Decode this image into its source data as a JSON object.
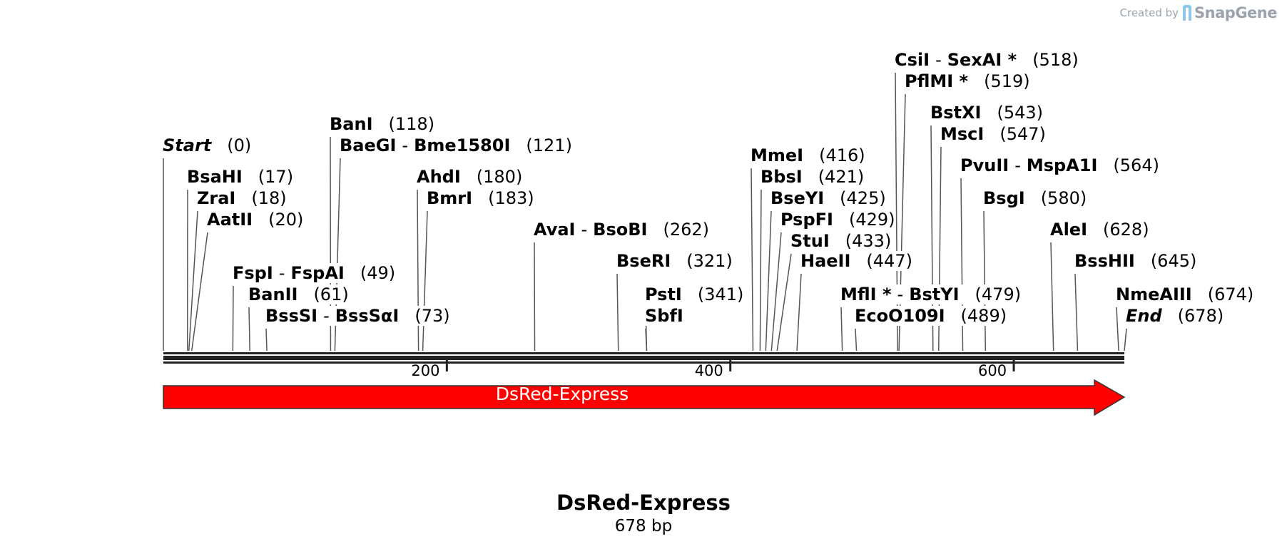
{
  "credit": {
    "created_by": "Created by",
    "brand": "SnapGene"
  },
  "sequence": {
    "name": "DsRed-Express",
    "length_text": "678 bp",
    "length_bp": 678
  },
  "ruler": {
    "ticks": [
      {
        "value": 200,
        "label": "200"
      },
      {
        "value": 400,
        "label": "400"
      },
      {
        "value": 600,
        "label": "600"
      }
    ]
  },
  "feature": {
    "label": "DsRed-Express",
    "start": 0,
    "end": 678,
    "color": "#ff0000",
    "direction": "forward"
  },
  "sites": [
    {
      "names": [
        "Start"
      ],
      "pos_text": "(0)",
      "pos": 0,
      "italic": true,
      "star": false
    },
    {
      "names": [
        "BsaHI"
      ],
      "pos_text": "(17)",
      "pos": 17
    },
    {
      "names": [
        "ZraI"
      ],
      "pos_text": "(18)",
      "pos": 18
    },
    {
      "names": [
        "AatII"
      ],
      "pos_text": "(20)",
      "pos": 20
    },
    {
      "names": [
        "FspI",
        "FspAI"
      ],
      "pos_text": "(49)",
      "pos": 49
    },
    {
      "names": [
        "BanII"
      ],
      "pos_text": "(61)",
      "pos": 61
    },
    {
      "names": [
        "BssSI",
        "BssSαI"
      ],
      "pos_text": "(73)",
      "pos": 73
    },
    {
      "names": [
        "BanI"
      ],
      "pos_text": "(118)",
      "pos": 118
    },
    {
      "names": [
        "BaeGI",
        "Bme1580I"
      ],
      "pos_text": "(121)",
      "pos": 121
    },
    {
      "names": [
        "AhdI"
      ],
      "pos_text": "(180)",
      "pos": 180
    },
    {
      "names": [
        "BmrI"
      ],
      "pos_text": "(183)",
      "pos": 183
    },
    {
      "names": [
        "AvaI",
        "BsoBI"
      ],
      "pos_text": "(262)",
      "pos": 262
    },
    {
      "names": [
        "BseRI"
      ],
      "pos_text": "(321)",
      "pos": 321
    },
    {
      "names": [
        "PstI"
      ],
      "pos_text": "(341)",
      "pos": 341
    },
    {
      "names": [
        "SbfI"
      ],
      "pos_text": "",
      "pos": 341
    },
    {
      "names": [
        "MmeI"
      ],
      "pos_text": "(416)",
      "pos": 416
    },
    {
      "names": [
        "BbsI"
      ],
      "pos_text": "(421)",
      "pos": 421
    },
    {
      "names": [
        "BseYI"
      ],
      "pos_text": "(425)",
      "pos": 425
    },
    {
      "names": [
        "PspFI"
      ],
      "pos_text": "(429)",
      "pos": 429
    },
    {
      "names": [
        "StuI"
      ],
      "pos_text": "(433)",
      "pos": 433
    },
    {
      "names": [
        "HaeII"
      ],
      "pos_text": "(447)",
      "pos": 447
    },
    {
      "names": [
        "MflI *",
        "BstYI"
      ],
      "pos_text": "(479)",
      "pos": 479
    },
    {
      "names": [
        "EcoO109I"
      ],
      "pos_text": "(489)",
      "pos": 489
    },
    {
      "names": [
        "CsiI",
        "SexAI *"
      ],
      "pos_text": "(518)",
      "pos": 518
    },
    {
      "names": [
        "PflMI *"
      ],
      "pos_text": "(519)",
      "pos": 519
    },
    {
      "names": [
        "BstXI"
      ],
      "pos_text": "(543)",
      "pos": 543
    },
    {
      "names": [
        "MscI"
      ],
      "pos_text": "(547)",
      "pos": 547
    },
    {
      "names": [
        "PvuII",
        "MspA1I"
      ],
      "pos_text": "(564)",
      "pos": 564
    },
    {
      "names": [
        "BsgI"
      ],
      "pos_text": "(580)",
      "pos": 580
    },
    {
      "names": [
        "AleI"
      ],
      "pos_text": "(628)",
      "pos": 628
    },
    {
      "names": [
        "BssHII"
      ],
      "pos_text": "(645)",
      "pos": 645
    },
    {
      "names": [
        "NmeAIII"
      ],
      "pos_text": "(674)",
      "pos": 674
    },
    {
      "names": [
        "End"
      ],
      "pos_text": "(678)",
      "pos": 678,
      "italic": true
    }
  ]
}
